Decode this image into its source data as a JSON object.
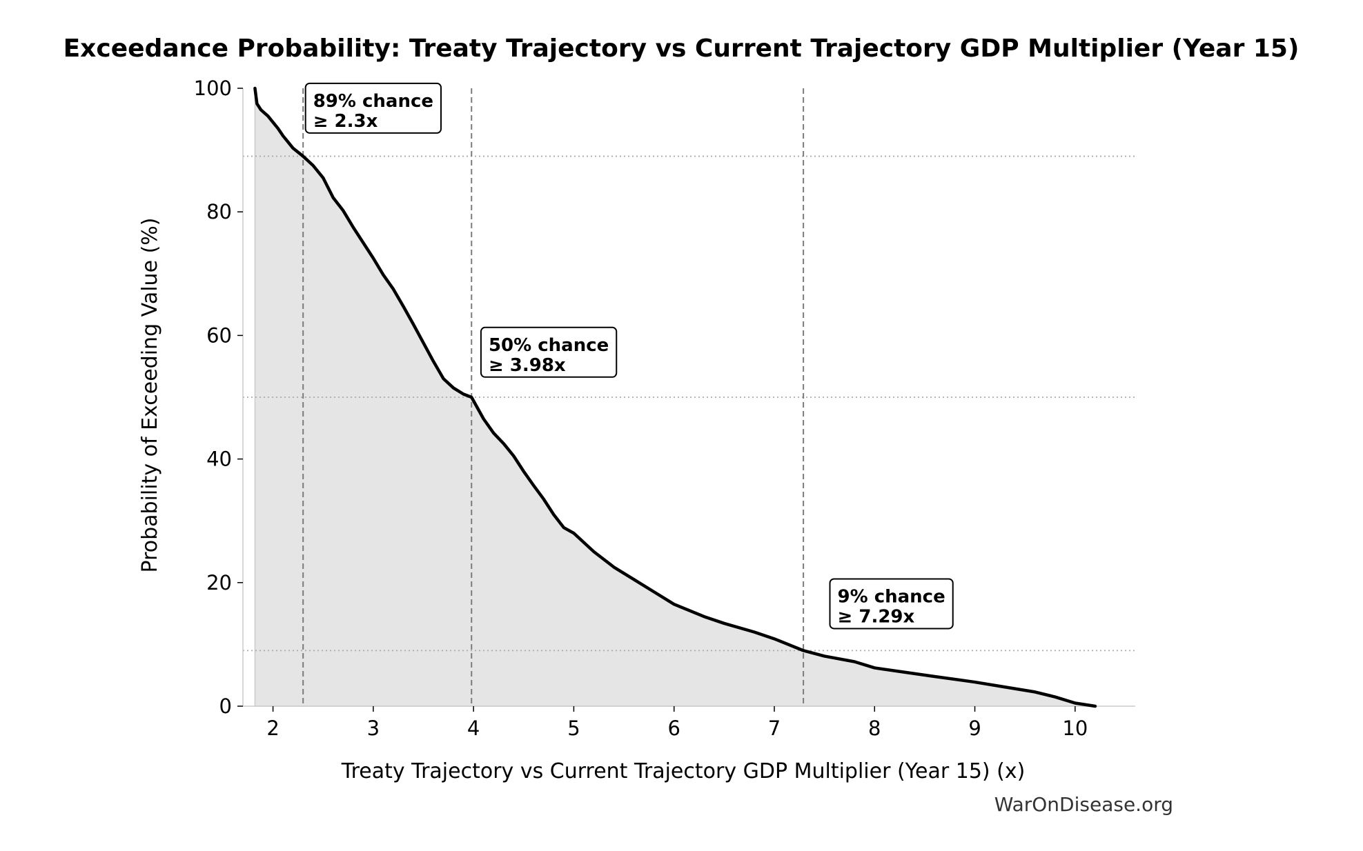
{
  "chart_data": {
    "type": "area",
    "title": "Exceedance Probability: Treaty Trajectory vs Current Trajectory GDP Multiplier (Year 15)",
    "xlabel": "Treaty Trajectory vs Current Trajectory GDP Multiplier (Year 15) (x)",
    "ylabel": "Probability of Exceeding Value (%)",
    "xlim": [
      1.7,
      10.6
    ],
    "ylim": [
      0,
      100
    ],
    "x_ticks": [
      2,
      3,
      4,
      5,
      6,
      7,
      8,
      9,
      10
    ],
    "y_ticks": [
      0,
      20,
      40,
      60,
      80,
      100
    ],
    "grid": false,
    "series": [
      {
        "x": [
          1.82,
          1.84,
          1.88,
          1.95,
          2.0,
          2.05,
          2.1,
          2.15,
          2.2,
          2.3,
          2.4,
          2.5,
          2.6,
          2.7,
          2.8,
          2.9,
          3.0,
          3.1,
          3.2,
          3.3,
          3.4,
          3.5,
          3.6,
          3.7,
          3.8,
          3.9,
          3.98,
          4.1,
          4.2,
          4.3,
          4.4,
          4.5,
          4.6,
          4.7,
          4.8,
          4.9,
          5.0,
          5.2,
          5.4,
          5.6,
          5.8,
          6.0,
          6.3,
          6.5,
          6.8,
          7.0,
          7.29,
          7.5,
          7.8,
          8.0,
          8.3,
          8.6,
          9.0,
          9.3,
          9.6,
          9.8,
          10.0,
          10.2
        ],
        "y": [
          100,
          97.5,
          96.5,
          95.5,
          94.5,
          93.5,
          92.3,
          91.3,
          90.3,
          89.0,
          87.5,
          85.5,
          82.3,
          80.2,
          77.5,
          75.0,
          72.5,
          69.8,
          67.5,
          64.7,
          61.8,
          58.8,
          55.8,
          53.0,
          51.5,
          50.5,
          50.0,
          46.5,
          44.2,
          42.5,
          40.5,
          38.0,
          35.7,
          33.5,
          31.0,
          28.9,
          28.0,
          25.0,
          22.5,
          20.5,
          18.5,
          16.5,
          14.5,
          13.4,
          12.0,
          10.9,
          9.0,
          8.1,
          7.2,
          6.2,
          5.5,
          4.8,
          3.9,
          3.1,
          2.3,
          1.5,
          0.5,
          0.0
        ],
        "color": "#000000",
        "fill": "#e5e5e5"
      }
    ],
    "reference_lines": [
      {
        "x": 2.3,
        "y": 89
      },
      {
        "x": 3.98,
        "y": 50
      },
      {
        "x": 7.29,
        "y": 9
      }
    ],
    "annotations": [
      {
        "line1": "89% chance",
        "line2": "≥ 2.3x",
        "x": 2.4,
        "y": 97
      },
      {
        "line1": "50% chance",
        "line2": "≥ 3.98x",
        "x": 4.15,
        "y": 57.5
      },
      {
        "line1": "9% chance",
        "line2": "≥ 7.29x",
        "x": 7.63,
        "y": 16.8
      }
    ],
    "watermark": "WarOnDisease.org"
  }
}
